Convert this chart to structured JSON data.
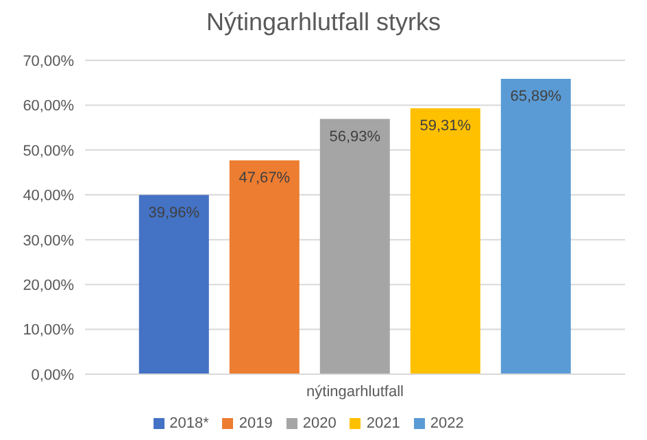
{
  "chart_data": {
    "type": "bar",
    "title": "Nýtingarhlutfall styrks",
    "categories": [
      "nýtingarhlutfall"
    ],
    "series": [
      {
        "name": "2018*",
        "color": "#4472c4",
        "values": [
          39.96
        ],
        "value_labels": [
          "39,96%"
        ]
      },
      {
        "name": "2019",
        "color": "#ed7d31",
        "values": [
          47.67
        ],
        "value_labels": [
          "47,67%"
        ]
      },
      {
        "name": "2020",
        "color": "#a5a5a5",
        "values": [
          56.93
        ],
        "value_labels": [
          "56,93%"
        ]
      },
      {
        "name": "2021",
        "color": "#ffc000",
        "values": [
          59.31
        ],
        "value_labels": [
          "59,31%"
        ]
      },
      {
        "name": "2022",
        "color": "#5b9bd5",
        "values": [
          65.89
        ],
        "value_labels": [
          "65,89%"
        ]
      }
    ],
    "ylim": [
      0,
      70
    ],
    "yticks": [
      {
        "value": 0,
        "label": "0,00%"
      },
      {
        "value": 10,
        "label": "10,00%"
      },
      {
        "value": 20,
        "label": "20,00%"
      },
      {
        "value": 30,
        "label": "30,00%"
      },
      {
        "value": 40,
        "label": "40,00%"
      },
      {
        "value": 50,
        "label": "50,00%"
      },
      {
        "value": 60,
        "label": "60,00%"
      },
      {
        "value": 70,
        "label": "70,00%"
      }
    ],
    "grid": "y",
    "legend": "bottom"
  }
}
